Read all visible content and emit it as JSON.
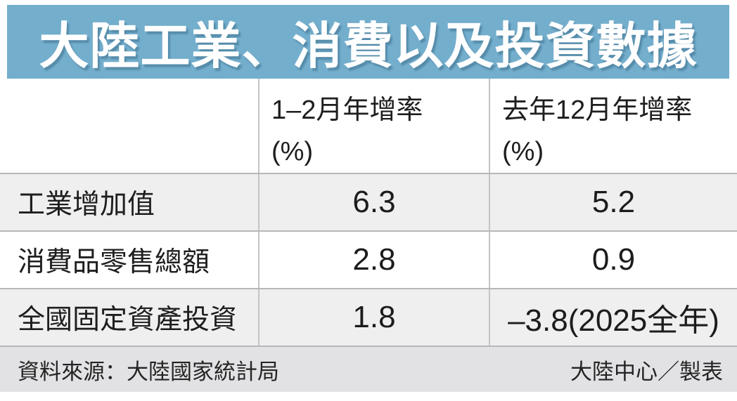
{
  "chart_data": {
    "type": "table",
    "title": "大陸工業、消費以及投資數據",
    "columns": [
      {
        "label": "1–2月年增率",
        "unit": "(%)"
      },
      {
        "label": "去年12月年增率",
        "unit": "(%)"
      }
    ],
    "rows": [
      {
        "label": "工業增加值",
        "jan_feb_yoy": "6.3",
        "dec_yoy": "5.2"
      },
      {
        "label": "消費品零售總額",
        "jan_feb_yoy": "2.8",
        "dec_yoy": "0.9"
      },
      {
        "label": "全國固定資產投資",
        "jan_feb_yoy": "1.8",
        "dec_yoy": "–3.8(2025全年)"
      }
    ],
    "source": "資料來源：大陸國家統計局",
    "credit": "大陸中心／製表",
    "layout": {
      "grid": "off",
      "header_position": "top"
    }
  },
  "colors": {
    "title_bg": "#74aecd",
    "title_text": "#ffffff",
    "row_alt_bg": "#efefef",
    "footer_bg": "#e2e2e4",
    "border": "#b7b7b7",
    "text": "#1e1e1e"
  }
}
